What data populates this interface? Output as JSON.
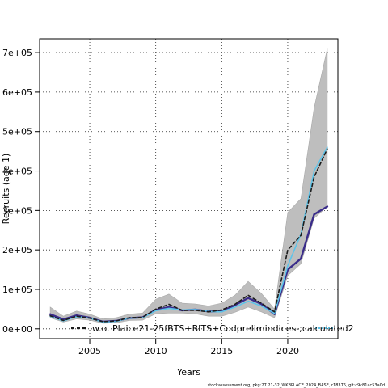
{
  "chart_data": {
    "type": "line",
    "xlabel": "Years",
    "ylabel": "Recruits (age 1)",
    "x": [
      2002,
      2003,
      2004,
      2005,
      2006,
      2007,
      2008,
      2009,
      2010,
      2011,
      2012,
      2013,
      2014,
      2015,
      2016,
      2017,
      2018,
      2019,
      2020,
      2021,
      2022,
      2023
    ],
    "xlim": [
      2001.2,
      2023.8
    ],
    "ylim": [
      -25000,
      735000
    ],
    "x_ticks": [
      2005,
      2010,
      2015,
      2020
    ],
    "x_tick_labels": [
      "2005",
      "2010",
      "2015",
      "2020"
    ],
    "y_ticks": [
      0,
      100000,
      200000,
      300000,
      400000,
      500000,
      600000,
      700000
    ],
    "y_tick_labels": [
      "0e+00",
      "1e+05",
      "2e+05",
      "3e+05",
      "4e+05",
      "5e+05",
      "6e+05",
      "7e+05"
    ],
    "grid": true,
    "band": {
      "lower": [
        28000,
        17000,
        25000,
        22000,
        14000,
        15000,
        21000,
        22000,
        38000,
        40000,
        40000,
        38000,
        32000,
        32000,
        42000,
        55000,
        43000,
        28000,
        135000,
        165000,
        280000,
        310000
      ],
      "upper": [
        55000,
        32000,
        45000,
        37000,
        25000,
        28000,
        37000,
        40000,
        75000,
        88000,
        65000,
        63000,
        58000,
        65000,
        85000,
        120000,
        90000,
        50000,
        295000,
        330000,
        560000,
        710000
      ]
    },
    "series": [
      {
        "name": "",
        "values": [
          37000,
          24000,
          34000,
          28000,
          18000,
          20000,
          27000,
          29000,
          48000,
          55000,
          47000,
          49000,
          44000,
          44000,
          60000,
          78000,
          63000,
          37000,
          150000,
          178000,
          290000,
          310000
        ]
      },
      {
        "name": "",
        "values": [
          32000,
          20000,
          31000,
          27000,
          17000,
          19000,
          27000,
          28000,
          46000,
          52000,
          48000,
          49000,
          44000,
          43000,
          55000,
          70000,
          58000,
          39000,
          160000,
          240000,
          400000,
          460000
        ]
      },
      {
        "name": "w.o. Plaice21-25fBTS+BITS+Codprelimindices-;calculated2",
        "values": [
          33000,
          21000,
          32000,
          27000,
          18000,
          20000,
          28000,
          29000,
          50000,
          62000,
          47000,
          47000,
          43000,
          48000,
          62000,
          85000,
          65000,
          43000,
          200000,
          237000,
          385000,
          456000
        ]
      }
    ],
    "legend": {
      "placement": "bottom"
    },
    "footer_note": "stockassessment.org, pkg:27.21-32_WKBPLACE_2024_BASE, r18376, git:c9c81ac53a0d"
  },
  "colors": {
    "band": "#bebebe",
    "band_edge": "#a9a9a9",
    "series_0": "#3a2c8a",
    "series_1": "#5ec4e9",
    "series_2": "#1c1c1c",
    "grid": "#222222",
    "frame": "#000000"
  }
}
